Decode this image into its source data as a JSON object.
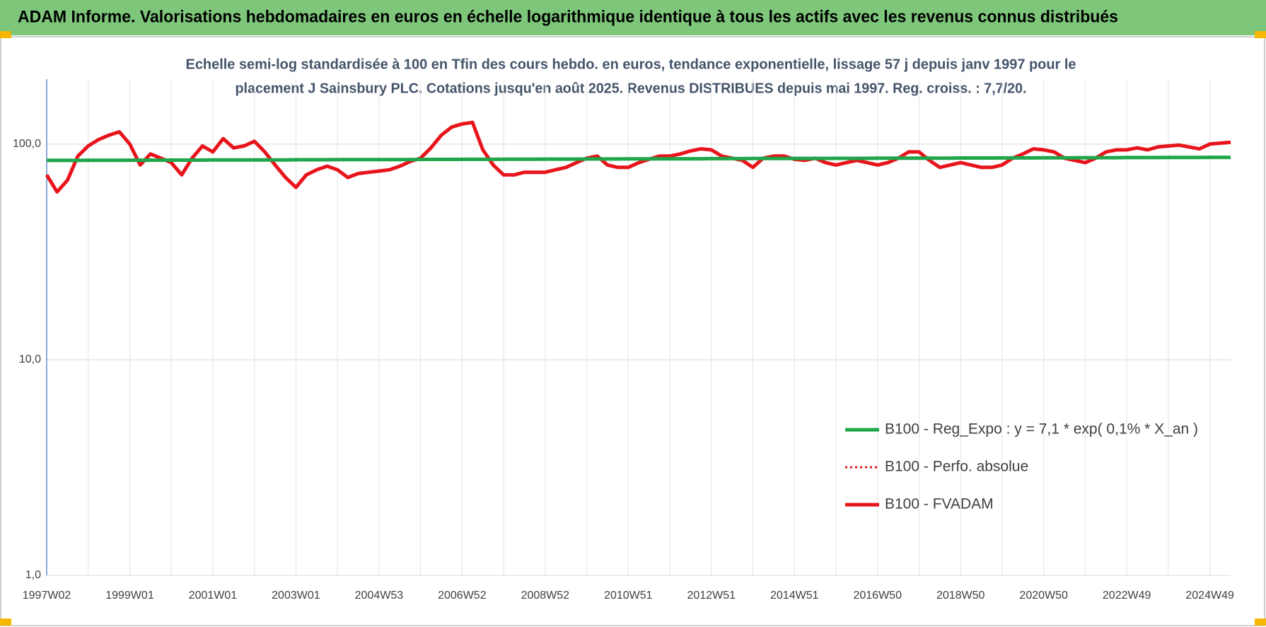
{
  "chart_data": {
    "type": "line",
    "title": "ADAM Informe. Valorisations hebdomadaires en euros en échelle logarithmique identique à tous les actifs avec les revenus connus distribués",
    "subtitle": [
      "Echelle semi-log standardisée à 100 en Tfin des cours hebdo. en euros, tendance exponentielle, lissage 57 j depuis janv 1997 pour le",
      "placement J Sainsbury PLC. Cotations jusqu'en août 2025. Revenus DISTRIBUES depuis mai 1997. Reg. croiss. : 7,7/20."
    ],
    "log_scale": true,
    "grid": true,
    "legend": "right",
    "ylim": [
      1,
      200
    ],
    "yticks": [
      {
        "value": 1,
        "label": "1,0"
      },
      {
        "value": 10,
        "label": "10,0"
      },
      {
        "value": 100,
        "label": "100,0"
      }
    ],
    "categories": [
      "1997W02",
      null,
      null,
      null,
      null,
      null,
      null,
      null,
      "1999W01",
      null,
      null,
      null,
      null,
      null,
      null,
      null,
      "2001W01",
      null,
      null,
      null,
      null,
      null,
      null,
      null,
      "2003W01",
      null,
      null,
      null,
      null,
      null,
      null,
      null,
      "2004W53",
      null,
      null,
      null,
      null,
      null,
      null,
      null,
      "2006W52",
      null,
      null,
      null,
      null,
      null,
      null,
      null,
      "2008W52",
      null,
      null,
      null,
      null,
      null,
      null,
      null,
      "2010W51",
      null,
      null,
      null,
      null,
      null,
      null,
      null,
      "2012W51",
      null,
      null,
      null,
      null,
      null,
      null,
      null,
      "2014W51",
      null,
      null,
      null,
      null,
      null,
      null,
      null,
      "2016W50",
      null,
      null,
      null,
      null,
      null,
      null,
      null,
      "2018W50",
      null,
      null,
      null,
      null,
      null,
      null,
      null,
      "2020W50",
      null,
      null,
      null,
      null,
      null,
      null,
      null,
      "2022W49",
      null,
      null,
      null,
      null,
      null,
      null,
      null,
      "2024W49",
      null,
      null
    ],
    "series": [
      {
        "name": "B100 - Reg_Expo : y = 7,1 * exp( 0,1% *  X_an )",
        "color": "#1fa64a",
        "style": "solid",
        "values": [
          84.0,
          84.0,
          84.0,
          84.0,
          84.1,
          84.1,
          84.1,
          84.1,
          84.2,
          84.2,
          84.2,
          84.2,
          84.3,
          84.3,
          84.3,
          84.3,
          84.4,
          84.4,
          84.4,
          84.4,
          84.5,
          84.5,
          84.5,
          84.5,
          84.6,
          84.6,
          84.6,
          84.6,
          84.7,
          84.7,
          84.7,
          84.7,
          84.8,
          84.8,
          84.8,
          84.8,
          84.9,
          84.9,
          84.9,
          84.9,
          85.0,
          85.0,
          85.0,
          85.0,
          85.1,
          85.1,
          85.1,
          85.1,
          85.2,
          85.2,
          85.2,
          85.2,
          85.3,
          85.3,
          85.3,
          85.3,
          85.4,
          85.4,
          85.4,
          85.4,
          85.5,
          85.5,
          85.5,
          85.5,
          85.6,
          85.6,
          85.6,
          85.6,
          85.7,
          85.7,
          85.7,
          85.7,
          85.8,
          85.8,
          85.8,
          85.8,
          85.9,
          85.9,
          85.9,
          85.9,
          86.0,
          86.0,
          86.0,
          86.0,
          86.1,
          86.1,
          86.1,
          86.1,
          86.2,
          86.2,
          86.2,
          86.2,
          86.3,
          86.3,
          86.3,
          86.3,
          86.4,
          86.4,
          86.4,
          86.4,
          86.5,
          86.5,
          86.5,
          86.5,
          86.6,
          86.6,
          86.6,
          86.6,
          86.7,
          86.7,
          86.7,
          86.7,
          86.8,
          86.8,
          86.8
        ]
      },
      {
        "name": "B100 - Perfo. absolue",
        "color": "#e8141b",
        "style": "dotted",
        "values": [
          72,
          60,
          68,
          88,
          98,
          105,
          110,
          114,
          100,
          80,
          90,
          86,
          82,
          72,
          86,
          98,
          92,
          106,
          96,
          98,
          103,
          92,
          80,
          70,
          63,
          72,
          76,
          79,
          76,
          70,
          73,
          74,
          75,
          76,
          79,
          83,
          86,
          96,
          110,
          120,
          124,
          126,
          94,
          80,
          72,
          72,
          74,
          74,
          74,
          76,
          78,
          82,
          86,
          88,
          80,
          78,
          78,
          82,
          85,
          88,
          88,
          90,
          93,
          95,
          94,
          88,
          86,
          84,
          78,
          86,
          88,
          88,
          85,
          84,
          86,
          82,
          80,
          82,
          84,
          82,
          80,
          82,
          86,
          92,
          92,
          84,
          78,
          80,
          82,
          80,
          78,
          78,
          80,
          86,
          90,
          95,
          94,
          92,
          86,
          84,
          82,
          86,
          92,
          94,
          94,
          96,
          94,
          97,
          98,
          99,
          97,
          95,
          100,
          101,
          102
        ]
      },
      {
        "name": "B100 - FVADAM",
        "color": "#e8141b",
        "style": "solid",
        "values": [
          72,
          60,
          68,
          88,
          98,
          105,
          110,
          114,
          100,
          80,
          90,
          86,
          82,
          72,
          86,
          98,
          92,
          106,
          96,
          98,
          103,
          92,
          80,
          70,
          63,
          72,
          76,
          79,
          76,
          70,
          73,
          74,
          75,
          76,
          79,
          83,
          86,
          96,
          110,
          120,
          124,
          126,
          94,
          80,
          72,
          72,
          74,
          74,
          74,
          76,
          78,
          82,
          86,
          88,
          80,
          78,
          78,
          82,
          85,
          88,
          88,
          90,
          93,
          95,
          94,
          88,
          86,
          84,
          78,
          86,
          88,
          88,
          85,
          84,
          86,
          82,
          80,
          82,
          84,
          82,
          80,
          82,
          86,
          92,
          92,
          84,
          78,
          80,
          82,
          80,
          78,
          78,
          80,
          86,
          90,
          95,
          94,
          92,
          86,
          84,
          82,
          86,
          92,
          94,
          94,
          96,
          94,
          97,
          98,
          99,
          97,
          95,
          100,
          101,
          102
        ]
      }
    ]
  }
}
